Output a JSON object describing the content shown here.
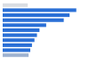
{
  "chart_data": {
    "type": "bar",
    "orientation": "horizontal",
    "categories": [
      null,
      null,
      null,
      null,
      null,
      null,
      null,
      null,
      null,
      null,
      null
    ],
    "values": [
      30,
      88,
      80,
      73,
      52,
      44,
      41,
      38,
      35,
      33,
      31
    ],
    "colors": [
      "#d9dde3",
      "#2a6fd6",
      "#2a6fd6",
      "#2a6fd6",
      "#2a6fd6",
      "#2a6fd6",
      "#2a6fd6",
      "#2a6fd6",
      "#2a6fd6",
      "#2a6fd6",
      "#9fb3d1"
    ],
    "ylim": [
      0,
      100
    ],
    "grid": false,
    "tick_labels": false
  }
}
